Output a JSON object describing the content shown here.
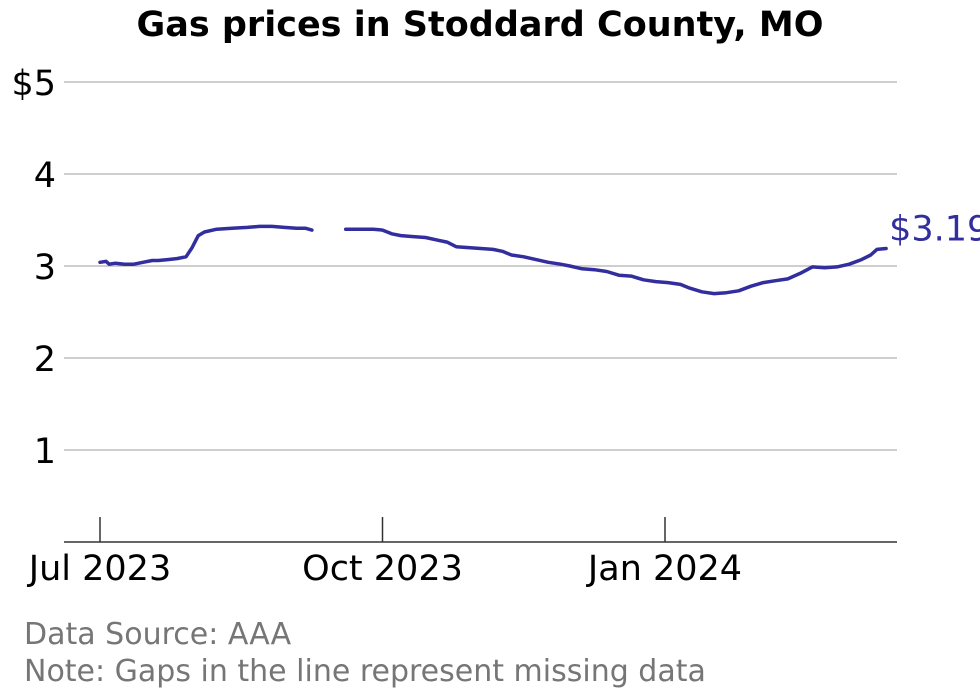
{
  "title": "Gas prices in Stoddard County, MO",
  "source": "Data Source: AAA",
  "note": "Note: Gaps in the line represent missing data",
  "last_value_label": "$3.19",
  "colors": {
    "line": "#332e9e",
    "grid": "#b0b0b0",
    "axis": "#333333",
    "footer": "#767676"
  },
  "chart_data": {
    "type": "line",
    "title": "Gas prices in Stoddard County, MO",
    "xlabel": "",
    "ylabel": "",
    "ylim": [
      0,
      5
    ],
    "xlim": [
      "2023-07-01",
      "2024-03-31"
    ],
    "y_ticks": [
      {
        "value": 1,
        "label": "1"
      },
      {
        "value": 2,
        "label": "2"
      },
      {
        "value": 3,
        "label": "3"
      },
      {
        "value": 4,
        "label": "4"
      },
      {
        "value": 5,
        "label": "$5"
      }
    ],
    "x_ticks": [
      {
        "date": "2023-07-01",
        "label": "Jul 2023"
      },
      {
        "date": "2023-10-01",
        "label": "Oct 2023"
      },
      {
        "date": "2024-01-01",
        "label": "Jan 2024"
      }
    ],
    "grid": true,
    "series": [
      {
        "segments": [
          [
            [
              "2023-07-01",
              3.04
            ],
            [
              "2023-07-03",
              3.05
            ],
            [
              "2023-07-04",
              3.02
            ],
            [
              "2023-07-06",
              3.03
            ],
            [
              "2023-07-09",
              3.02
            ],
            [
              "2023-07-12",
              3.02
            ],
            [
              "2023-07-15",
              3.04
            ],
            [
              "2023-07-18",
              3.06
            ],
            [
              "2023-07-20",
              3.06
            ],
            [
              "2023-07-23",
              3.07
            ],
            [
              "2023-07-26",
              3.08
            ],
            [
              "2023-07-29",
              3.1
            ],
            [
              "2023-07-31",
              3.2
            ],
            [
              "2023-08-02",
              3.33
            ],
            [
              "2023-08-04",
              3.37
            ],
            [
              "2023-08-08",
              3.4
            ],
            [
              "2023-08-13",
              3.41
            ],
            [
              "2023-08-18",
              3.42
            ],
            [
              "2023-08-22",
              3.43
            ],
            [
              "2023-08-26",
              3.43
            ],
            [
              "2023-08-30",
              3.42
            ],
            [
              "2023-09-03",
              3.41
            ],
            [
              "2023-09-06",
              3.41
            ],
            [
              "2023-09-08",
              3.39
            ]
          ],
          [
            [
              "2023-09-19",
              3.4
            ],
            [
              "2023-09-23",
              3.4
            ],
            [
              "2023-09-28",
              3.4
            ],
            [
              "2023-10-01",
              3.39
            ],
            [
              "2023-10-04",
              3.35
            ],
            [
              "2023-10-07",
              3.33
            ],
            [
              "2023-10-11",
              3.32
            ],
            [
              "2023-10-15",
              3.31
            ],
            [
              "2023-10-19",
              3.28
            ],
            [
              "2023-10-22",
              3.26
            ],
            [
              "2023-10-25",
              3.21
            ],
            [
              "2023-10-29",
              3.2
            ],
            [
              "2023-11-02",
              3.19
            ],
            [
              "2023-11-06",
              3.18
            ],
            [
              "2023-11-09",
              3.16
            ],
            [
              "2023-11-12",
              3.12
            ],
            [
              "2023-11-16",
              3.1
            ],
            [
              "2023-11-20",
              3.07
            ],
            [
              "2023-11-24",
              3.04
            ],
            [
              "2023-11-28",
              3.02
            ],
            [
              "2023-12-01",
              3.0
            ],
            [
              "2023-12-05",
              2.97
            ],
            [
              "2023-12-09",
              2.96
            ],
            [
              "2023-12-13",
              2.94
            ],
            [
              "2023-12-17",
              2.9
            ],
            [
              "2023-12-21",
              2.89
            ],
            [
              "2023-12-25",
              2.85
            ],
            [
              "2023-12-29",
              2.83
            ],
            [
              "2024-01-02",
              2.82
            ],
            [
              "2024-01-06",
              2.8
            ],
            [
              "2024-01-09",
              2.76
            ],
            [
              "2024-01-13",
              2.72
            ],
            [
              "2024-01-17",
              2.7
            ],
            [
              "2024-01-21",
              2.71
            ],
            [
              "2024-01-25",
              2.73
            ],
            [
              "2024-01-29",
              2.78
            ],
            [
              "2024-02-02",
              2.82
            ],
            [
              "2024-02-06",
              2.84
            ],
            [
              "2024-02-10",
              2.86
            ],
            [
              "2024-02-14",
              2.92
            ],
            [
              "2024-02-18",
              2.99
            ],
            [
              "2024-02-22",
              2.98
            ],
            [
              "2024-02-26",
              2.99
            ],
            [
              "2024-03-01",
              3.02
            ],
            [
              "2024-03-05",
              3.07
            ],
            [
              "2024-03-08",
              3.12
            ],
            [
              "2024-03-10",
              3.18
            ],
            [
              "2024-03-13",
              3.19
            ]
          ]
        ]
      }
    ]
  }
}
